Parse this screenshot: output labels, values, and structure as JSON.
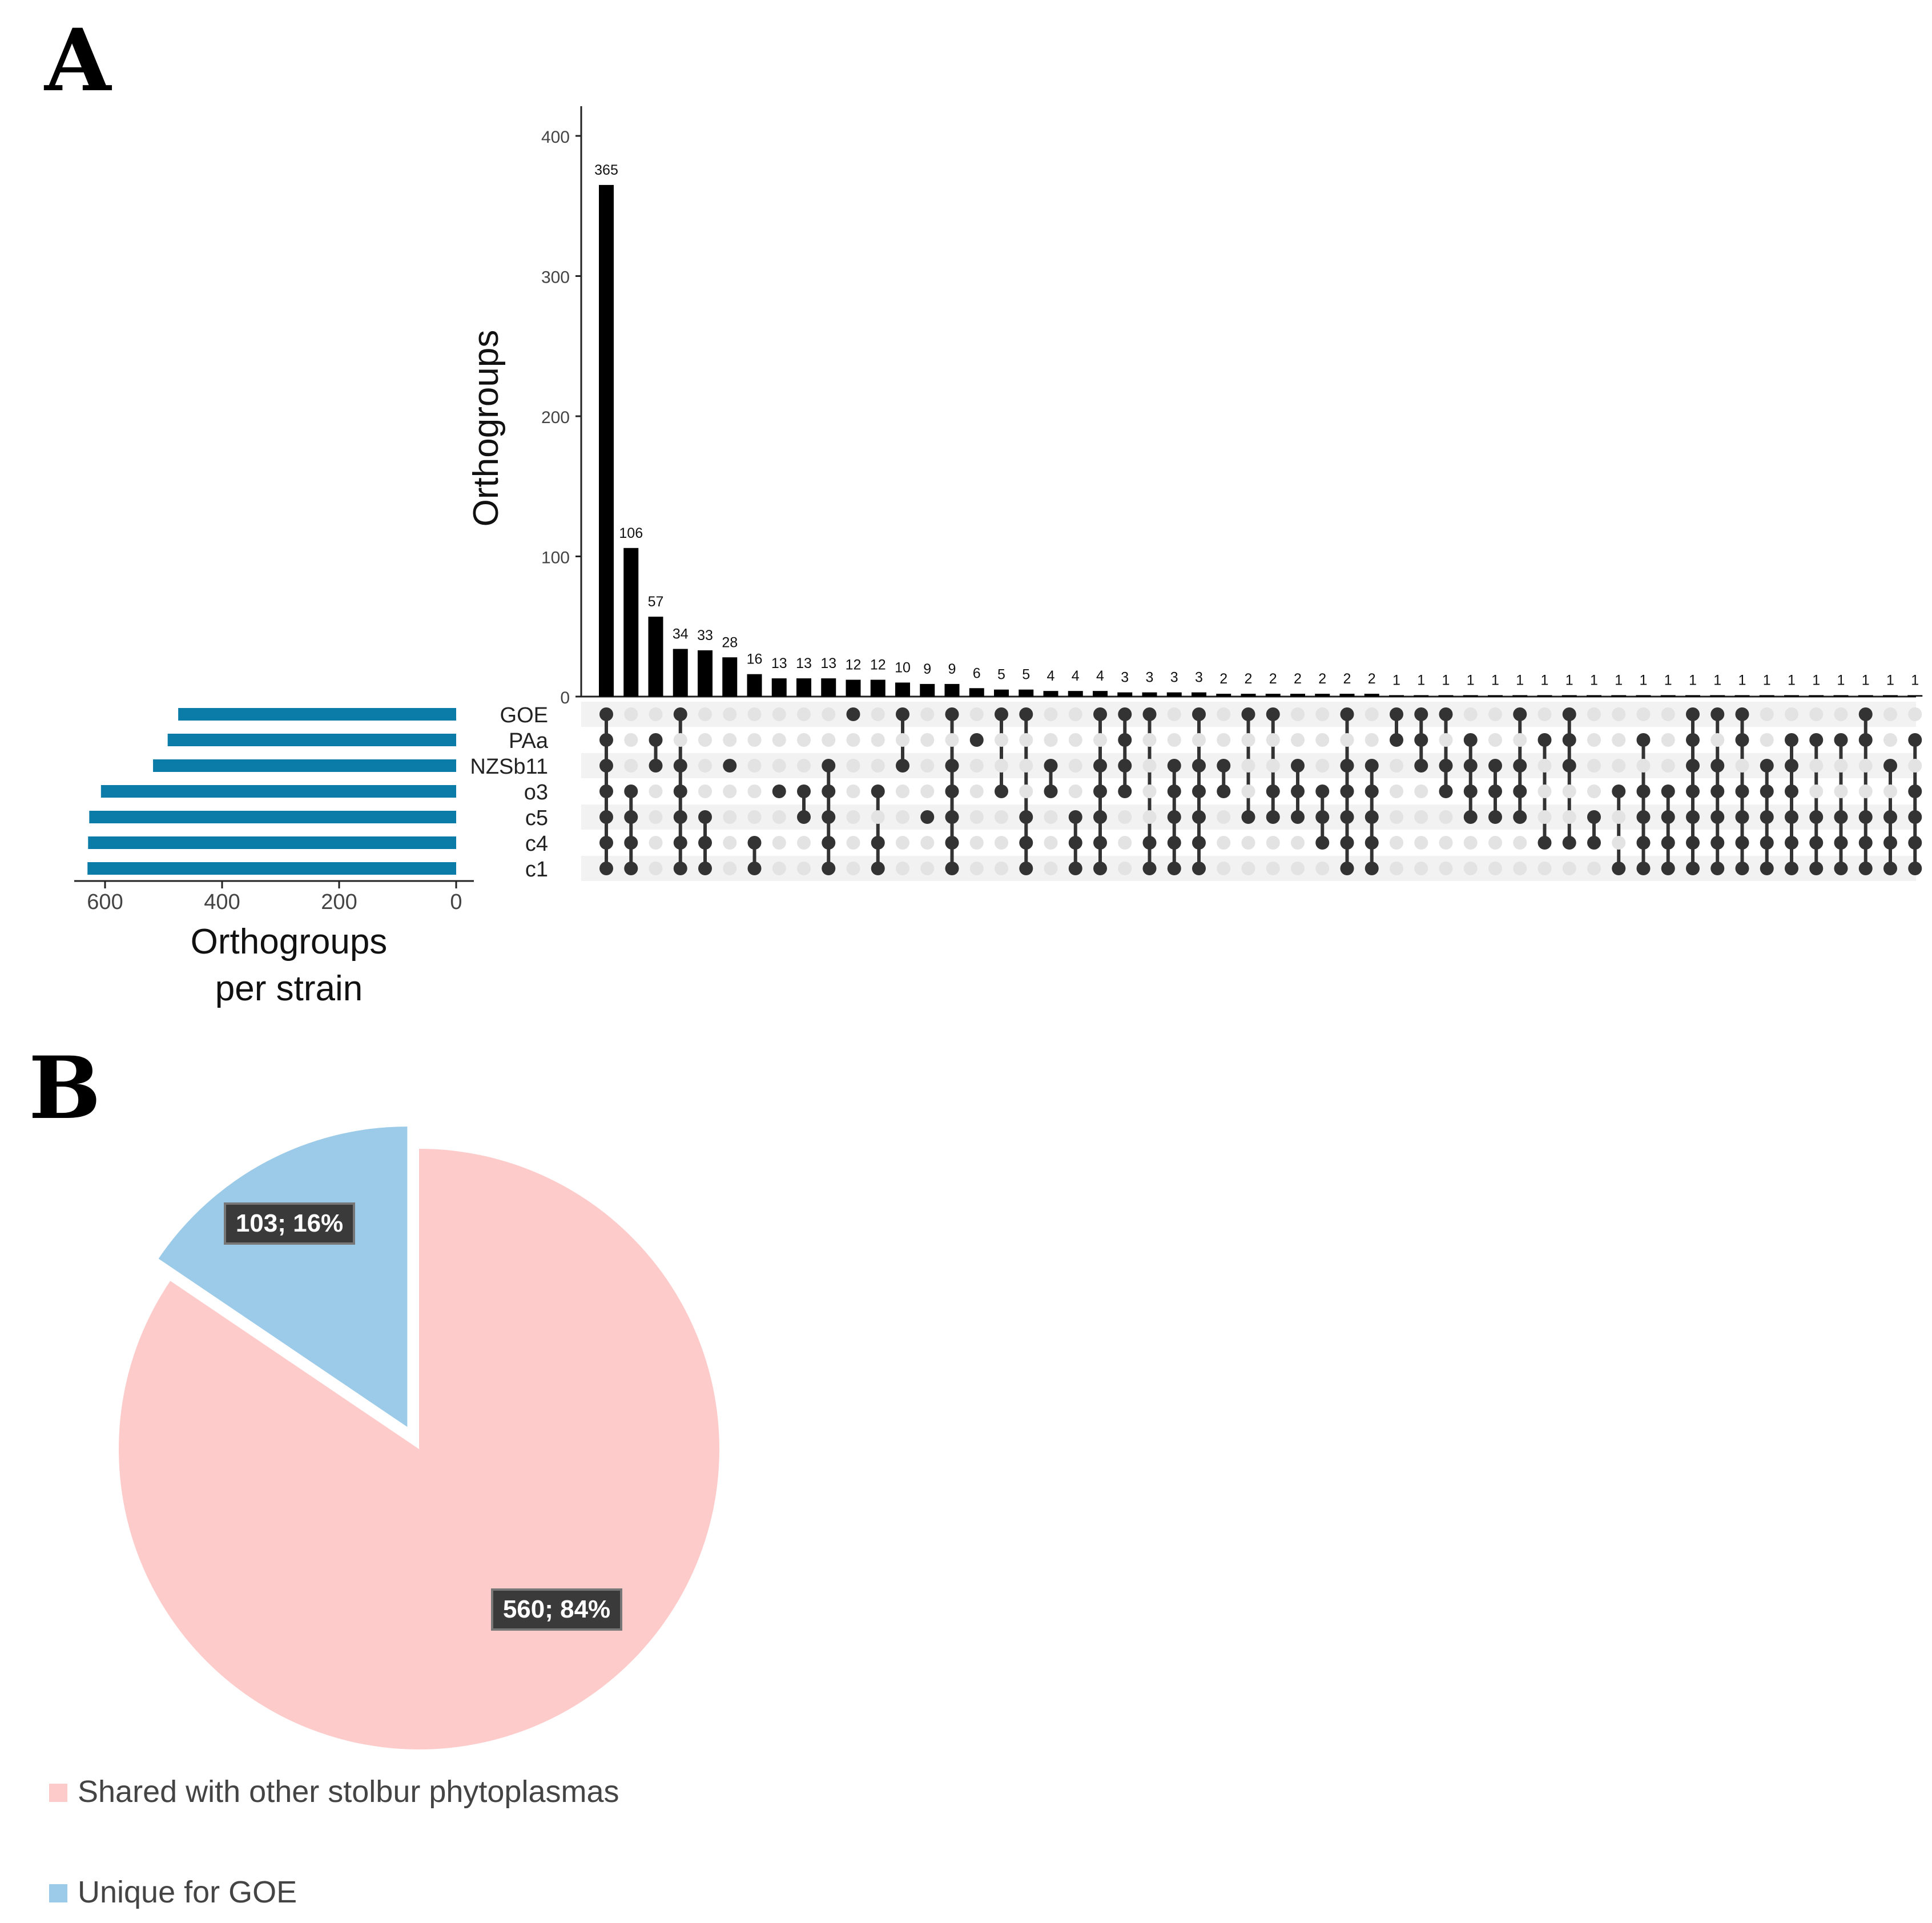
{
  "panels": {
    "a": {
      "label": "A"
    },
    "b": {
      "label": "B"
    }
  },
  "chart_data": [
    {
      "type": "bar",
      "subtype": "upset-intersection-sizes",
      "ylabel": "Orthogroups",
      "ylim": [
        0,
        420
      ],
      "yticks": [
        0,
        100,
        200,
        300,
        400
      ],
      "sets": [
        "GOE",
        "PAa",
        "NZSb11",
        "o3",
        "c5",
        "c4",
        "c1"
      ],
      "values": [
        365,
        106,
        57,
        34,
        33,
        28,
        16,
        13,
        13,
        13,
        12,
        12,
        10,
        9,
        9,
        6,
        5,
        5,
        4,
        4,
        4,
        3,
        3,
        3,
        3,
        2,
        2,
        2,
        2,
        2,
        2,
        2,
        1,
        1,
        1,
        1,
        1,
        1,
        1,
        1,
        1,
        1,
        1,
        1,
        1,
        1,
        1,
        1,
        1,
        1,
        1,
        1,
        1,
        1
      ],
      "membership": [
        [
          "GOE",
          "PAa",
          "NZSb11",
          "o3",
          "c5",
          "c4",
          "c1"
        ],
        [
          "o3",
          "c5",
          "c4",
          "c1"
        ],
        [
          "PAa",
          "NZSb11"
        ],
        [
          "GOE",
          "NZSb11",
          "o3",
          "c5",
          "c4",
          "c1"
        ],
        [
          "c5",
          "c4",
          "c1"
        ],
        [
          "NZSb11"
        ],
        [
          "c4",
          "c1"
        ],
        [
          "o3"
        ],
        [
          "o3",
          "c5"
        ],
        [
          "NZSb11",
          "o3",
          "c5",
          "c4",
          "c1"
        ],
        [
          "GOE"
        ],
        [
          "o3",
          "c4",
          "c1"
        ],
        [
          "GOE",
          "NZSb11"
        ],
        [
          "c5"
        ],
        [
          "GOE",
          "NZSb11",
          "o3",
          "c5",
          "c4",
          "c1"
        ],
        [
          "PAa"
        ],
        [
          "GOE",
          "o3"
        ],
        [
          "GOE",
          "c5",
          "c4",
          "c1"
        ],
        [
          "NZSb11",
          "o3"
        ],
        [
          "c5",
          "c4",
          "c1"
        ],
        [
          "GOE",
          "NZSb11",
          "o3",
          "c5",
          "c4",
          "c1"
        ],
        [
          "GOE",
          "PAa",
          "NZSb11",
          "o3"
        ],
        [
          "GOE",
          "c4",
          "c1"
        ],
        [
          "NZSb11",
          "o3",
          "c5",
          "c4",
          "c1"
        ],
        [
          "GOE",
          "NZSb11",
          "o3",
          "c5",
          "c4",
          "c1"
        ],
        [
          "NZSb11",
          "o3"
        ],
        [
          "GOE",
          "c5"
        ],
        [
          "GOE",
          "o3",
          "c5"
        ],
        [
          "NZSb11",
          "o3",
          "c5"
        ],
        [
          "o3",
          "c5",
          "c4"
        ],
        [
          "GOE",
          "NZSb11",
          "o3",
          "c5",
          "c4",
          "c1"
        ],
        [
          "NZSb11",
          "o3",
          "c5",
          "c4",
          "c1"
        ],
        [
          "GOE",
          "PAa"
        ],
        [
          "GOE",
          "PAa",
          "NZSb11"
        ],
        [
          "GOE",
          "NZSb11",
          "o3"
        ],
        [
          "PAa",
          "NZSb11",
          "o3",
          "c5"
        ],
        [
          "NZSb11",
          "o3",
          "c5"
        ],
        [
          "GOE",
          "NZSb11",
          "o3",
          "c5"
        ],
        [
          "PAa",
          "c4"
        ],
        [
          "GOE",
          "PAa",
          "NZSb11",
          "c4"
        ],
        [
          "c5",
          "c4"
        ],
        [
          "o3",
          "c1"
        ],
        [
          "PAa",
          "o3",
          "c5",
          "c4",
          "c1"
        ],
        [
          "o3",
          "c5",
          "c4",
          "c1"
        ],
        [
          "GOE",
          "PAa",
          "NZSb11",
          "o3",
          "c5",
          "c4",
          "c1"
        ],
        [
          "GOE",
          "NZSb11",
          "o3",
          "c5",
          "c4",
          "c1"
        ],
        [
          "GOE",
          "PAa",
          "o3",
          "c5",
          "c4",
          "c1"
        ],
        [
          "NZSb11",
          "o3",
          "c5",
          "c4",
          "c1"
        ],
        [
          "PAa",
          "NZSb11",
          "o3",
          "c5",
          "c4",
          "c1"
        ],
        [
          "PAa",
          "c5",
          "c4",
          "c1"
        ],
        [
          "PAa",
          "c5",
          "c4",
          "c1"
        ],
        [
          "GOE",
          "PAa",
          "c5",
          "c4",
          "c1"
        ],
        [
          "NZSb11",
          "c5",
          "c4",
          "c1"
        ],
        [
          "PAa",
          "o3",
          "c5",
          "c4",
          "c1"
        ]
      ]
    },
    {
      "type": "bar",
      "orientation": "horizontal",
      "subtype": "set-sizes",
      "xlabel_line1": "Orthogroups",
      "xlabel_line2": "per strain",
      "xlim": [
        0,
        640
      ],
      "xticks": [
        600,
        400,
        200,
        0
      ],
      "categories": [
        "GOE",
        "PAa",
        "NZSb11",
        "o3",
        "c5",
        "c4",
        "c1"
      ],
      "values": [
        475,
        493,
        518,
        607,
        627,
        629,
        630
      ],
      "color": "#0a7ca7"
    },
    {
      "type": "pie",
      "slices": [
        {
          "name": "Shared with other stolbur phytoplasmas",
          "value": 560,
          "label": "560; 84%",
          "color": "#fecbcb"
        },
        {
          "name": "Unique for GOE",
          "value": 103,
          "label": "103; 16%",
          "color": "#9ccbe9"
        }
      ],
      "legend": [
        "Shared with other stolbur phytoplasmas",
        "Unique for GOE"
      ]
    }
  ]
}
